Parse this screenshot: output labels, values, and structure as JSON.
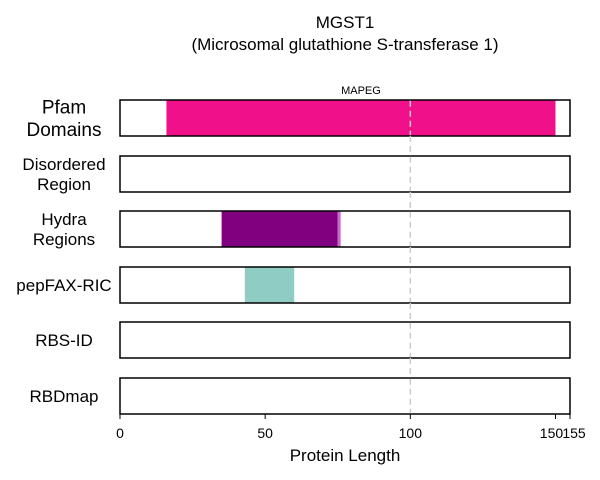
{
  "chart_data": {
    "type": "bar",
    "title": "MGST1",
    "subtitle": "(Microsomal glutathione S-transferase 1)",
    "xlabel": "Protein Length",
    "xlim": [
      0,
      155
    ],
    "xticks": [
      0,
      50,
      100,
      150,
      155
    ],
    "reference_line": 100,
    "tracks": [
      {
        "label": "Pfam\nDomains",
        "segments": [
          {
            "start": 16,
            "end": 150,
            "color": "#f0118a",
            "name": "MAPEG"
          }
        ]
      },
      {
        "label": "Disordered\nRegion",
        "segments": []
      },
      {
        "label": "Hydra\nRegions",
        "segments": [
          {
            "start": 35,
            "end": 75,
            "color": "#800080"
          },
          {
            "start": 75,
            "end": 76,
            "color": "#cc66cc"
          }
        ]
      },
      {
        "label": "pepFAX-RIC",
        "segments": [
          {
            "start": 43,
            "end": 60,
            "color": "#8fccc4"
          }
        ]
      },
      {
        "label": "RBS-ID",
        "segments": []
      },
      {
        "label": "RBDmap",
        "segments": []
      }
    ]
  }
}
